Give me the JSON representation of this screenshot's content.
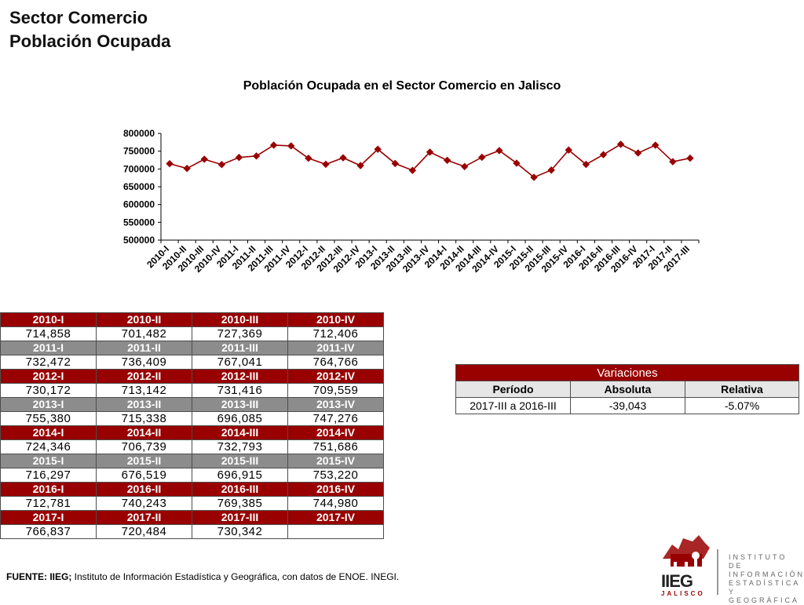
{
  "header": {
    "title_line1": "Sector Comercio",
    "title_line2": "Población Ocupada"
  },
  "chart_data": {
    "type": "line",
    "title": "Población Ocupada en el Sector Comercio en Jalisco",
    "xlabel": "",
    "ylabel": "",
    "ylim": [
      500000,
      800000
    ],
    "yticks": [
      500000,
      550000,
      600000,
      650000,
      700000,
      750000,
      800000
    ],
    "grid": false,
    "color": "#990000",
    "categories": [
      "2010-I",
      "2010-II",
      "2010-III",
      "2010-IV",
      "2011-I",
      "2011-II",
      "2011-III",
      "2011-IV",
      "2012-I",
      "2012-II",
      "2012-III",
      "2012-IV",
      "2013-I",
      "2013-II",
      "2013-III",
      "2013-IV",
      "2014-I",
      "2014-II",
      "2014-III",
      "2014-IV",
      "2015-I",
      "2015-II",
      "2015-III",
      "2015-IV",
      "2016-I",
      "2016-II",
      "2016-III",
      "2016-IV",
      "2017-I",
      "2017-II",
      "2017-III"
    ],
    "values": [
      714858,
      701482,
      727369,
      712406,
      732472,
      736409,
      767041,
      764766,
      730172,
      713142,
      731416,
      709559,
      755380,
      715338,
      696085,
      747276,
      724346,
      706739,
      732793,
      751686,
      716297,
      676519,
      696915,
      753220,
      712781,
      740243,
      769385,
      744980,
      766837,
      720484,
      730342
    ]
  },
  "data_table": [
    {
      "label_style": "red",
      "labels": [
        "2010-I",
        "2010-II",
        "2010-III",
        "2010-IV"
      ],
      "values": [
        "714,858",
        "701,482",
        "727,369",
        "712,406"
      ]
    },
    {
      "label_style": "gray",
      "labels": [
        "2011-I",
        "2011-II",
        "2011-III",
        "2011-IV"
      ],
      "values": [
        "732,472",
        "736,409",
        "767,041",
        "764,766"
      ]
    },
    {
      "label_style": "red",
      "labels": [
        "2012-I",
        "2012-II",
        "2012-III",
        "2012-IV"
      ],
      "values": [
        "730,172",
        "713,142",
        "731,416",
        "709,559"
      ]
    },
    {
      "label_style": "gray",
      "labels": [
        "2013-I",
        "2013-II",
        "2013-III",
        "2013-IV"
      ],
      "values": [
        "755,380",
        "715,338",
        "696,085",
        "747,276"
      ]
    },
    {
      "label_style": "red",
      "labels": [
        "2014-I",
        "2014-II",
        "2014-III",
        "2014-IV"
      ],
      "values": [
        "724,346",
        "706,739",
        "732,793",
        "751,686"
      ]
    },
    {
      "label_style": "gray",
      "labels": [
        "2015-I",
        "2015-II",
        "2015-III",
        "2015-IV"
      ],
      "values": [
        "716,297",
        "676,519",
        "696,915",
        "753,220"
      ]
    },
    {
      "label_style": "red",
      "labels": [
        "2016-I",
        "2016-II",
        "2016-III",
        "2016-IV"
      ],
      "values": [
        "712,781",
        "740,243",
        "769,385",
        "744,980"
      ]
    },
    {
      "label_style": "red",
      "labels": [
        "2017-I",
        "2017-II",
        "2017-III",
        "2017-IV"
      ],
      "values": [
        "766,837",
        "720,484",
        "730,342",
        ""
      ]
    }
  ],
  "variations": {
    "title": "Variaciones",
    "columns": [
      "Período",
      "Absoluta",
      "Relativa"
    ],
    "row": [
      "2017-III a 2016-III",
      "-39,043",
      "-5.07%"
    ]
  },
  "source": {
    "bold": "FUENTE: IIEG;",
    "text": " Instituto de Información Estadística y Geográfica, con datos de ENOE. INEGI."
  },
  "logo": {
    "acronym": "IIEG",
    "state": "JALISCO",
    "lines": [
      "INSTITUTO DE",
      "INFORMACIÓN",
      "ESTADÍSTICA Y",
      "GEOGRÁFICA"
    ]
  }
}
